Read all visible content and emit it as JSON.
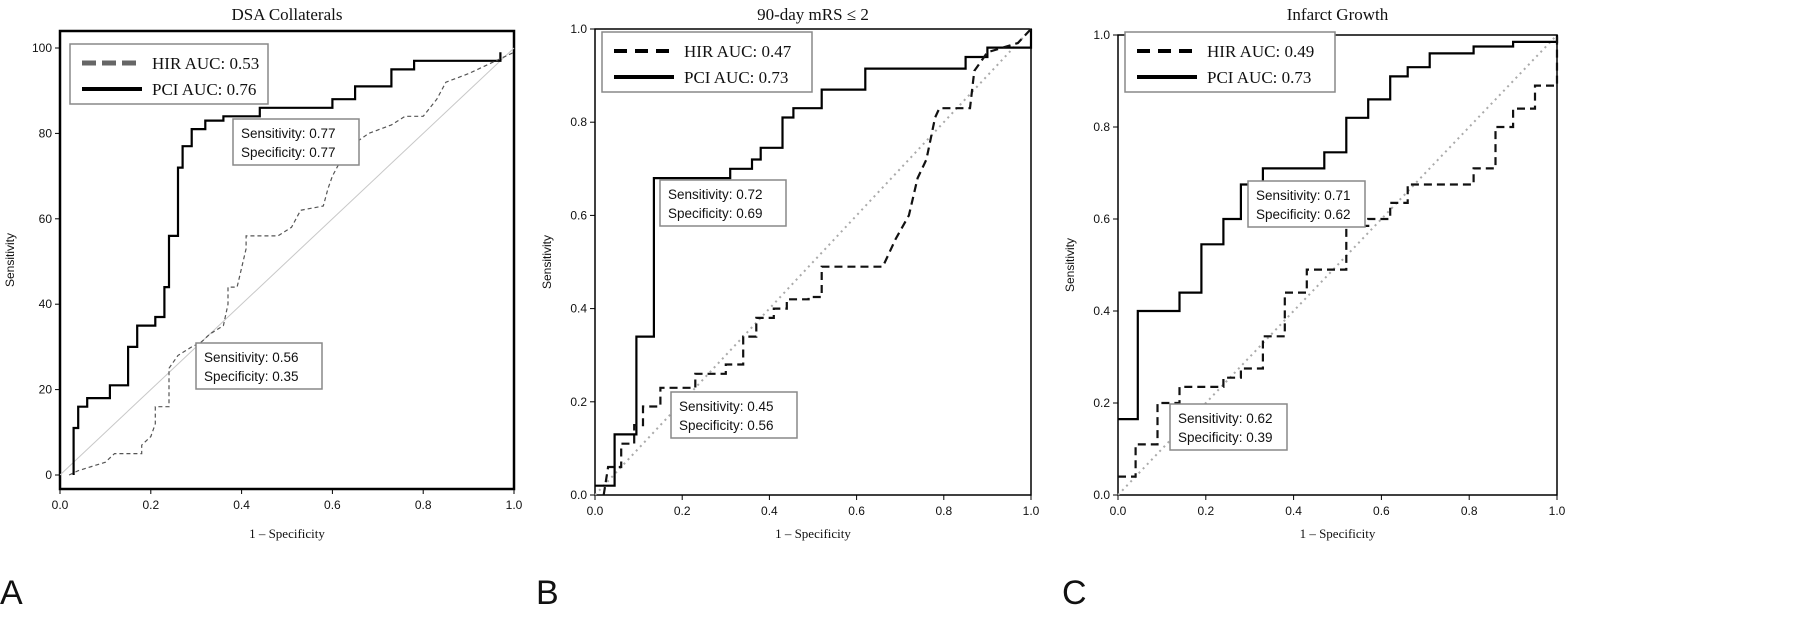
{
  "figure": {
    "panels": [
      {
        "letter": "A",
        "title": "DSA Collaterals",
        "xlabel": "1 – Specificity",
        "ylabel": "Sensitivity",
        "xticks": [
          "0.0",
          "0.2",
          "0.4",
          "0.6",
          "0.8",
          "1.0"
        ],
        "yticks": [
          "0",
          "20",
          "40",
          "60",
          "80",
          "100"
        ],
        "legend": [
          "HIR AUC: 0.53",
          "PCI AUC: 0.76"
        ],
        "box_pci": [
          "Sensitivity: 0.77",
          "Specificity: 0.77"
        ],
        "box_hir": [
          "Sensitivity: 0.56",
          "Specificity: 0.35"
        ]
      },
      {
        "letter": "B",
        "title": "90-day mRS ≤ 2",
        "xlabel": "1 – Specificity",
        "ylabel": "Sensitivity",
        "xticks": [
          "0.0",
          "0.2",
          "0.4",
          "0.6",
          "0.8",
          "1.0"
        ],
        "yticks": [
          "0.0",
          "0.2",
          "0.4",
          "0.6",
          "0.8",
          "1.0"
        ],
        "legend": [
          "HIR AUC: 0.47",
          "PCI AUC: 0.73"
        ],
        "box_pci": [
          "Sensitivity: 0.72",
          "Specificity: 0.69"
        ],
        "box_hir": [
          "Sensitivity: 0.45",
          "Specificity: 0.56"
        ]
      },
      {
        "letter": "C",
        "title": "Infarct Growth",
        "xlabel": "1 – Specificity",
        "ylabel": "Sensitivity",
        "xticks": [
          "0.0",
          "0.2",
          "0.4",
          "0.6",
          "0.8",
          "1.0"
        ],
        "yticks": [
          "0.0",
          "0.2",
          "0.4",
          "0.6",
          "0.8",
          "1.0"
        ],
        "legend": [
          "HIR AUC: 0.49",
          "PCI AUC: 0.73"
        ],
        "box_pci": [
          "Sensitivity: 0.71",
          "Specificity: 0.62"
        ],
        "box_hir": [
          "Sensitivity: 0.62",
          "Specificity: 0.39"
        ]
      }
    ]
  },
  "chart_data": [
    {
      "type": "line",
      "title": "DSA Collaterals",
      "xlabel": "1 – Specificity",
      "ylabel": "Sensitivity",
      "xlim": [
        0,
        1
      ],
      "ylim": [
        0,
        100
      ],
      "diagonal_reference": true,
      "series": [
        {
          "name": "PCI AUC: 0.76",
          "style": "solid",
          "points": [
            [
              0.03,
              0
            ],
            [
              0.03,
              11
            ],
            [
              0.04,
              11
            ],
            [
              0.04,
              16
            ],
            [
              0.06,
              16
            ],
            [
              0.06,
              18
            ],
            [
              0.11,
              18
            ],
            [
              0.11,
              21
            ],
            [
              0.15,
              21
            ],
            [
              0.15,
              30
            ],
            [
              0.17,
              30
            ],
            [
              0.17,
              35
            ],
            [
              0.21,
              35
            ],
            [
              0.21,
              37
            ],
            [
              0.23,
              37
            ],
            [
              0.23,
              44
            ],
            [
              0.24,
              44
            ],
            [
              0.24,
              56
            ],
            [
              0.26,
              56
            ],
            [
              0.26,
              72
            ],
            [
              0.27,
              72
            ],
            [
              0.27,
              77
            ],
            [
              0.29,
              77
            ],
            [
              0.29,
              81
            ],
            [
              0.32,
              81
            ],
            [
              0.32,
              83
            ],
            [
              0.36,
              83
            ],
            [
              0.36,
              84
            ],
            [
              0.44,
              84
            ],
            [
              0.44,
              86
            ],
            [
              0.6,
              86
            ],
            [
              0.6,
              88
            ],
            [
              0.65,
              88
            ],
            [
              0.65,
              91
            ],
            [
              0.73,
              91
            ],
            [
              0.73,
              95
            ],
            [
              0.78,
              95
            ],
            [
              0.78,
              97
            ],
            [
              0.97,
              97
            ],
            [
              0.97,
              99
            ]
          ]
        },
        {
          "name": "HIR AUC: 0.53",
          "style": "dashed",
          "points": [
            [
              0.02,
              0
            ],
            [
              0.04,
              1
            ],
            [
              0.1,
              3
            ],
            [
              0.12,
              5
            ],
            [
              0.18,
              5
            ],
            [
              0.18,
              7
            ],
            [
              0.2,
              9
            ],
            [
              0.21,
              12
            ],
            [
              0.21,
              16
            ],
            [
              0.24,
              16
            ],
            [
              0.24,
              25
            ],
            [
              0.26,
              28
            ],
            [
              0.29,
              30
            ],
            [
              0.31,
              31
            ],
            [
              0.33,
              33
            ],
            [
              0.36,
              35
            ],
            [
              0.37,
              40
            ],
            [
              0.37,
              44
            ],
            [
              0.39,
              44
            ],
            [
              0.41,
              53
            ],
            [
              0.41,
              56
            ],
            [
              0.48,
              56
            ],
            [
              0.51,
              58
            ],
            [
              0.53,
              62
            ],
            [
              0.58,
              63
            ],
            [
              0.59,
              67
            ],
            [
              0.6,
              70
            ],
            [
              0.62,
              74
            ],
            [
              0.64,
              77
            ],
            [
              0.68,
              80
            ],
            [
              0.73,
              82
            ],
            [
              0.76,
              84
            ],
            [
              0.8,
              84
            ],
            [
              0.83,
              88
            ],
            [
              0.85,
              92
            ],
            [
              0.9,
              94
            ],
            [
              0.94,
              96
            ],
            [
              0.96,
              97
            ],
            [
              1.0,
              99
            ]
          ]
        }
      ],
      "annotations": [
        "Sensitivity: 0.77 / Specificity: 0.77",
        "Sensitivity: 0.56 / Specificity: 0.35"
      ]
    },
    {
      "type": "line",
      "title": "90-day mRS ≤ 2",
      "xlabel": "1 – Specificity",
      "ylabel": "Sensitivity",
      "xlim": [
        0,
        1
      ],
      "ylim": [
        0,
        1
      ],
      "diagonal_reference": true,
      "series": [
        {
          "name": "PCI AUC: 0.73",
          "style": "solid",
          "points": [
            [
              0,
              0.02
            ],
            [
              0.045,
              0.02
            ],
            [
              0.045,
              0.13
            ],
            [
              0.095,
              0.13
            ],
            [
              0.095,
              0.34
            ],
            [
              0.135,
              0.34
            ],
            [
              0.135,
              0.68
            ],
            [
              0.31,
              0.68
            ],
            [
              0.31,
              0.7
            ],
            [
              0.36,
              0.7
            ],
            [
              0.36,
              0.72
            ],
            [
              0.38,
              0.72
            ],
            [
              0.38,
              0.745
            ],
            [
              0.43,
              0.745
            ],
            [
              0.43,
              0.81
            ],
            [
              0.455,
              0.81
            ],
            [
              0.455,
              0.83
            ],
            [
              0.52,
              0.83
            ],
            [
              0.52,
              0.87
            ],
            [
              0.62,
              0.87
            ],
            [
              0.62,
              0.915
            ],
            [
              0.85,
              0.915
            ],
            [
              0.85,
              0.94
            ],
            [
              0.9,
              0.94
            ],
            [
              0.9,
              0.96
            ],
            [
              1.0,
              0.96
            ],
            [
              1.0,
              1.0
            ]
          ]
        },
        {
          "name": "HIR AUC: 0.47",
          "style": "dashed",
          "points": [
            [
              0.02,
              0
            ],
            [
              0.03,
              0.06
            ],
            [
              0.06,
              0.06
            ],
            [
              0.06,
              0.11
            ],
            [
              0.09,
              0.11
            ],
            [
              0.09,
              0.15
            ],
            [
              0.11,
              0.15
            ],
            [
              0.11,
              0.19
            ],
            [
              0.15,
              0.19
            ],
            [
              0.15,
              0.23
            ],
            [
              0.23,
              0.23
            ],
            [
              0.23,
              0.26
            ],
            [
              0.3,
              0.26
            ],
            [
              0.3,
              0.28
            ],
            [
              0.34,
              0.28
            ],
            [
              0.34,
              0.34
            ],
            [
              0.37,
              0.34
            ],
            [
              0.37,
              0.38
            ],
            [
              0.41,
              0.38
            ],
            [
              0.41,
              0.4
            ],
            [
              0.44,
              0.4
            ],
            [
              0.44,
              0.42
            ],
            [
              0.49,
              0.42
            ],
            [
              0.49,
              0.425
            ],
            [
              0.52,
              0.425
            ],
            [
              0.52,
              0.49
            ],
            [
              0.59,
              0.49
            ],
            [
              0.61,
              0.49
            ],
            [
              0.66,
              0.49
            ],
            [
              0.69,
              0.55
            ],
            [
              0.72,
              0.6
            ],
            [
              0.74,
              0.68
            ],
            [
              0.76,
              0.72
            ],
            [
              0.78,
              0.81
            ],
            [
              0.79,
              0.83
            ],
            [
              0.86,
              0.83
            ],
            [
              0.87,
              0.91
            ],
            [
              0.9,
              0.95
            ],
            [
              0.97,
              0.97
            ],
            [
              1.0,
              1.0
            ]
          ]
        }
      ],
      "annotations": [
        "Sensitivity: 0.72 / Specificity: 0.69",
        "Sensitivity: 0.45 / Specificity: 0.56"
      ]
    },
    {
      "type": "line",
      "title": "Infarct Growth",
      "xlabel": "1 – Specificity",
      "ylabel": "Sensitivity",
      "xlim": [
        0,
        1
      ],
      "ylim": [
        0,
        1
      ],
      "diagonal_reference": true,
      "series": [
        {
          "name": "PCI AUC: 0.73",
          "style": "solid",
          "points": [
            [
              0,
              0.165
            ],
            [
              0.045,
              0.165
            ],
            [
              0.045,
              0.4
            ],
            [
              0.14,
              0.4
            ],
            [
              0.14,
              0.44
            ],
            [
              0.19,
              0.44
            ],
            [
              0.19,
              0.545
            ],
            [
              0.24,
              0.545
            ],
            [
              0.24,
              0.6
            ],
            [
              0.28,
              0.6
            ],
            [
              0.28,
              0.675
            ],
            [
              0.33,
              0.675
            ],
            [
              0.33,
              0.71
            ],
            [
              0.47,
              0.71
            ],
            [
              0.47,
              0.745
            ],
            [
              0.52,
              0.745
            ],
            [
              0.52,
              0.82
            ],
            [
              0.57,
              0.82
            ],
            [
              0.57,
              0.86
            ],
            [
              0.62,
              0.86
            ],
            [
              0.62,
              0.91
            ],
            [
              0.66,
              0.91
            ],
            [
              0.66,
              0.93
            ],
            [
              0.71,
              0.93
            ],
            [
              0.71,
              0.96
            ],
            [
              0.81,
              0.96
            ],
            [
              0.81,
              0.975
            ],
            [
              0.9,
              0.975
            ],
            [
              0.9,
              0.985
            ],
            [
              1.0,
              0.985
            ],
            [
              1.0,
              1.0
            ]
          ]
        },
        {
          "name": "HIR AUC: 0.49",
          "style": "dashed",
          "points": [
            [
              0,
              0.04
            ],
            [
              0.04,
              0.04
            ],
            [
              0.04,
              0.11
            ],
            [
              0.09,
              0.11
            ],
            [
              0.09,
              0.2
            ],
            [
              0.14,
              0.2
            ],
            [
              0.14,
              0.235
            ],
            [
              0.24,
              0.235
            ],
            [
              0.24,
              0.255
            ],
            [
              0.28,
              0.255
            ],
            [
              0.28,
              0.275
            ],
            [
              0.33,
              0.275
            ],
            [
              0.33,
              0.345
            ],
            [
              0.38,
              0.345
            ],
            [
              0.38,
              0.44
            ],
            [
              0.43,
              0.44
            ],
            [
              0.43,
              0.49
            ],
            [
              0.52,
              0.49
            ],
            [
              0.52,
              0.585
            ],
            [
              0.57,
              0.585
            ],
            [
              0.57,
              0.6
            ],
            [
              0.62,
              0.6
            ],
            [
              0.62,
              0.635
            ],
            [
              0.66,
              0.635
            ],
            [
              0.66,
              0.675
            ],
            [
              0.81,
              0.675
            ],
            [
              0.81,
              0.71
            ],
            [
              0.86,
              0.71
            ],
            [
              0.86,
              0.8
            ],
            [
              0.9,
              0.8
            ],
            [
              0.9,
              0.84
            ],
            [
              0.95,
              0.84
            ],
            [
              0.95,
              0.89
            ],
            [
              1.0,
              0.89
            ],
            [
              1.0,
              1.0
            ]
          ]
        }
      ],
      "annotations": [
        "Sensitivity: 0.71 / Specificity: 0.62",
        "Sensitivity: 0.62 / Specificity: 0.39"
      ]
    }
  ]
}
